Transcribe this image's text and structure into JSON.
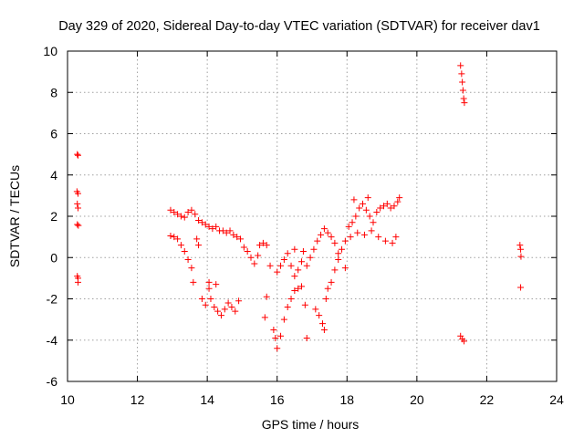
{
  "chart_data": {
    "type": "scatter",
    "title": "Day 329 of 2020, Sidereal Day-to-day VTEC variation (SDTVAR) for receiver dav1",
    "xlabel": "GPS time / hours",
    "ylabel": "SDTVAR / TECUs",
    "xlim": [
      10,
      24
    ],
    "ylim": [
      -6,
      10
    ],
    "xticks": [
      10,
      12,
      14,
      16,
      18,
      20,
      22,
      24
    ],
    "yticks": [
      -6,
      -4,
      -2,
      0,
      2,
      4,
      6,
      8,
      10
    ],
    "grid": true,
    "marker": "+",
    "marker_color": "#ff0000",
    "series": [
      {
        "name": "SDTVAR",
        "points": [
          [
            10.28,
            5.0
          ],
          [
            10.3,
            4.95
          ],
          [
            10.27,
            3.2
          ],
          [
            10.3,
            3.1
          ],
          [
            10.28,
            2.6
          ],
          [
            10.3,
            2.4
          ],
          [
            10.28,
            1.6
          ],
          [
            10.31,
            1.55
          ],
          [
            10.28,
            -0.9
          ],
          [
            10.3,
            -1.0
          ],
          [
            10.3,
            -1.2
          ],
          [
            12.95,
            2.3
          ],
          [
            13.05,
            2.2
          ],
          [
            13.15,
            2.1
          ],
          [
            13.25,
            2.0
          ],
          [
            13.35,
            1.95
          ],
          [
            13.45,
            2.2
          ],
          [
            13.55,
            2.3
          ],
          [
            13.65,
            2.1
          ],
          [
            13.75,
            1.8
          ],
          [
            13.85,
            1.7
          ],
          [
            13.95,
            1.6
          ],
          [
            14.05,
            1.5
          ],
          [
            14.15,
            1.4
          ],
          [
            14.25,
            1.5
          ],
          [
            14.35,
            1.3
          ],
          [
            14.45,
            1.3
          ],
          [
            14.55,
            1.2
          ],
          [
            14.65,
            1.3
          ],
          [
            14.75,
            1.1
          ],
          [
            14.85,
            1.0
          ],
          [
            14.95,
            0.9
          ],
          [
            15.05,
            0.5
          ],
          [
            15.15,
            0.3
          ],
          [
            15.25,
            0.0
          ],
          [
            15.35,
            -0.3
          ],
          [
            15.45,
            0.1
          ],
          [
            15.5,
            0.6
          ],
          [
            15.6,
            0.7
          ],
          [
            15.7,
            0.6
          ],
          [
            15.8,
            -0.4
          ],
          [
            12.95,
            1.05
          ],
          [
            13.05,
            1.0
          ],
          [
            13.15,
            0.9
          ],
          [
            13.25,
            0.6
          ],
          [
            13.35,
            0.3
          ],
          [
            13.45,
            -0.1
          ],
          [
            13.55,
            -0.5
          ],
          [
            13.6,
            -1.2
          ],
          [
            13.7,
            0.9
          ],
          [
            13.75,
            0.6
          ],
          [
            13.85,
            -2.0
          ],
          [
            13.95,
            -2.3
          ],
          [
            14.05,
            -1.5
          ],
          [
            14.1,
            -2.0
          ],
          [
            14.2,
            -2.4
          ],
          [
            14.3,
            -2.6
          ],
          [
            14.4,
            -2.8
          ],
          [
            14.5,
            -2.5
          ],
          [
            14.6,
            -2.2
          ],
          [
            14.7,
            -2.4
          ],
          [
            14.8,
            -2.6
          ],
          [
            14.9,
            -2.1
          ],
          [
            14.05,
            -1.2
          ],
          [
            14.25,
            -1.3
          ],
          [
            15.65,
            -2.9
          ],
          [
            15.7,
            -1.9
          ],
          [
            15.9,
            -3.5
          ],
          [
            15.95,
            -3.9
          ],
          [
            16.0,
            -4.4
          ],
          [
            16.1,
            -3.8
          ],
          [
            16.2,
            -3.0
          ],
          [
            16.3,
            -2.4
          ],
          [
            16.4,
            -2.0
          ],
          [
            16.5,
            -1.6
          ],
          [
            16.6,
            -1.5
          ],
          [
            16.7,
            -1.4
          ],
          [
            16.8,
            -2.3
          ],
          [
            16.85,
            -3.9
          ],
          [
            16.0,
            -0.7
          ],
          [
            16.1,
            -0.4
          ],
          [
            16.2,
            -0.1
          ],
          [
            16.3,
            0.2
          ],
          [
            16.4,
            -0.4
          ],
          [
            16.5,
            -0.9
          ],
          [
            16.6,
            -0.6
          ],
          [
            16.7,
            -0.2
          ],
          [
            16.75,
            0.3
          ],
          [
            16.85,
            -0.4
          ],
          [
            16.95,
            0.0
          ],
          [
            17.05,
            0.4
          ],
          [
            17.15,
            0.8
          ],
          [
            17.25,
            1.1
          ],
          [
            17.35,
            1.4
          ],
          [
            17.45,
            1.2
          ],
          [
            17.55,
            1.0
          ],
          [
            17.65,
            0.7
          ],
          [
            16.5,
            0.4
          ],
          [
            17.1,
            -2.5
          ],
          [
            17.2,
            -2.8
          ],
          [
            17.3,
            -3.2
          ],
          [
            17.35,
            -3.5
          ],
          [
            17.4,
            -2.0
          ],
          [
            17.45,
            -1.5
          ],
          [
            17.55,
            -1.2
          ],
          [
            17.65,
            -0.6
          ],
          [
            17.75,
            -0.1
          ],
          [
            17.85,
            0.4
          ],
          [
            17.95,
            0.8
          ],
          [
            18.05,
            1.5
          ],
          [
            18.15,
            1.7
          ],
          [
            18.25,
            2.0
          ],
          [
            18.35,
            2.4
          ],
          [
            18.45,
            2.6
          ],
          [
            18.55,
            2.3
          ],
          [
            18.65,
            2.0
          ],
          [
            18.75,
            1.7
          ],
          [
            18.85,
            2.2
          ],
          [
            18.95,
            2.4
          ],
          [
            19.05,
            2.5
          ],
          [
            19.15,
            2.6
          ],
          [
            19.25,
            2.4
          ],
          [
            19.35,
            2.5
          ],
          [
            19.45,
            2.7
          ],
          [
            18.1,
            1.0
          ],
          [
            18.3,
            1.2
          ],
          [
            18.5,
            1.1
          ],
          [
            18.7,
            1.3
          ],
          [
            18.9,
            1.0
          ],
          [
            19.1,
            0.8
          ],
          [
            19.3,
            0.7
          ],
          [
            19.4,
            1.0
          ],
          [
            17.75,
            0.2
          ],
          [
            17.95,
            -0.5
          ],
          [
            18.2,
            2.8
          ],
          [
            18.6,
            2.9
          ],
          [
            19.5,
            2.9
          ],
          [
            21.25,
            9.3
          ],
          [
            21.28,
            8.9
          ],
          [
            21.3,
            8.5
          ],
          [
            21.32,
            8.1
          ],
          [
            21.34,
            7.7
          ],
          [
            21.36,
            7.5
          ],
          [
            21.25,
            -3.8
          ],
          [
            21.3,
            -3.95
          ],
          [
            21.35,
            -4.05
          ],
          [
            22.95,
            0.6
          ],
          [
            22.97,
            0.4
          ],
          [
            22.98,
            0.05
          ],
          [
            22.97,
            -1.45
          ]
        ]
      }
    ]
  }
}
